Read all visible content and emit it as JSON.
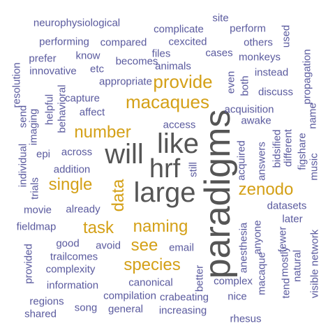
{
  "colors": {
    "background": "#ffffff",
    "small": "#5a5a9e",
    "medium": "#d4a017",
    "large": "#555555"
  },
  "words": [
    {
      "text": "paradigms",
      "tier": "large"
    },
    {
      "text": "large",
      "tier": "large"
    },
    {
      "text": "like",
      "tier": "large"
    },
    {
      "text": "will",
      "tier": "large"
    },
    {
      "text": "hrf",
      "tier": "large"
    },
    {
      "text": "macaques",
      "tier": "medium"
    },
    {
      "text": "provide",
      "tier": "medium"
    },
    {
      "text": "number",
      "tier": "medium"
    },
    {
      "text": "zenodo",
      "tier": "medium"
    },
    {
      "text": "single",
      "tier": "medium"
    },
    {
      "text": "data",
      "tier": "medium"
    },
    {
      "text": "naming",
      "tier": "medium"
    },
    {
      "text": "task",
      "tier": "medium"
    },
    {
      "text": "see",
      "tier": "medium"
    },
    {
      "text": "species",
      "tier": "medium"
    },
    {
      "text": "neurophysiological",
      "tier": "small"
    },
    {
      "text": "site",
      "tier": "small"
    },
    {
      "text": "complicate",
      "tier": "small"
    },
    {
      "text": "perform",
      "tier": "small"
    },
    {
      "text": "performing",
      "tier": "small"
    },
    {
      "text": "compared",
      "tier": "small"
    },
    {
      "text": "cexcited",
      "tier": "small"
    },
    {
      "text": "others",
      "tier": "small"
    },
    {
      "text": "used",
      "tier": "small"
    },
    {
      "text": "prefer",
      "tier": "small"
    },
    {
      "text": "know",
      "tier": "small"
    },
    {
      "text": "files",
      "tier": "small"
    },
    {
      "text": "cases",
      "tier": "small"
    },
    {
      "text": "monkeys",
      "tier": "small"
    },
    {
      "text": "innovative",
      "tier": "small"
    },
    {
      "text": "etc",
      "tier": "small"
    },
    {
      "text": "becomes",
      "tier": "small"
    },
    {
      "text": "animals",
      "tier": "small"
    },
    {
      "text": "instead",
      "tier": "small"
    },
    {
      "text": "appropriate",
      "tier": "small"
    },
    {
      "text": "even",
      "tier": "small"
    },
    {
      "text": "both",
      "tier": "small"
    },
    {
      "text": "discuss",
      "tier": "small"
    },
    {
      "text": "propagation",
      "tier": "small"
    },
    {
      "text": "resolution",
      "tier": "small"
    },
    {
      "text": "capture",
      "tier": "small"
    },
    {
      "text": "helpful",
      "tier": "small"
    },
    {
      "text": "behavioral",
      "tier": "small"
    },
    {
      "text": "acquisition",
      "tier": "small"
    },
    {
      "text": "affect",
      "tier": "small"
    },
    {
      "text": "send",
      "tier": "small"
    },
    {
      "text": "imaging",
      "tier": "small"
    },
    {
      "text": "awake",
      "tier": "small"
    },
    {
      "text": "access",
      "tier": "small"
    },
    {
      "text": "name",
      "tier": "small"
    },
    {
      "text": "music",
      "tier": "small"
    },
    {
      "text": "individual",
      "tier": "small"
    },
    {
      "text": "epi",
      "tier": "small"
    },
    {
      "text": "across",
      "tier": "small"
    },
    {
      "text": "acquired",
      "tier": "small"
    },
    {
      "text": "answers",
      "tier": "small"
    },
    {
      "text": "bidsified",
      "tier": "small"
    },
    {
      "text": "different",
      "tier": "small"
    },
    {
      "text": "figshare",
      "tier": "small"
    },
    {
      "text": "trials",
      "tier": "small"
    },
    {
      "text": "addition",
      "tier": "small"
    },
    {
      "text": "still",
      "tier": "small"
    },
    {
      "text": "movie",
      "tier": "small"
    },
    {
      "text": "already",
      "tier": "small"
    },
    {
      "text": "datasets",
      "tier": "small"
    },
    {
      "text": "fieldmap",
      "tier": "small"
    },
    {
      "text": "later",
      "tier": "small"
    },
    {
      "text": "fewer",
      "tier": "small"
    },
    {
      "text": "anyone",
      "tier": "small"
    },
    {
      "text": "anesthesia",
      "tier": "small"
    },
    {
      "text": "good",
      "tier": "small"
    },
    {
      "text": "avoid",
      "tier": "small"
    },
    {
      "text": "email",
      "tier": "small"
    },
    {
      "text": "provided",
      "tier": "small"
    },
    {
      "text": "trailcomes",
      "tier": "small"
    },
    {
      "text": "complexity",
      "tier": "small"
    },
    {
      "text": "macaque",
      "tier": "small"
    },
    {
      "text": "mostly",
      "tier": "small"
    },
    {
      "text": "better",
      "tier": "small"
    },
    {
      "text": "visible network",
      "tier": "small"
    },
    {
      "text": "natural",
      "tier": "small"
    },
    {
      "text": "information",
      "tier": "small"
    },
    {
      "text": "canonical",
      "tier": "small"
    },
    {
      "text": "complex",
      "tier": "small"
    },
    {
      "text": "tend",
      "tier": "small"
    },
    {
      "text": "regions",
      "tier": "small"
    },
    {
      "text": "compilation",
      "tier": "small"
    },
    {
      "text": "crabeating",
      "tier": "small"
    },
    {
      "text": "nice",
      "tier": "small"
    },
    {
      "text": "song",
      "tier": "small"
    },
    {
      "text": "shared",
      "tier": "small"
    },
    {
      "text": "general",
      "tier": "small"
    },
    {
      "text": "increasing",
      "tier": "small"
    },
    {
      "text": "rhesus",
      "tier": "small"
    }
  ]
}
